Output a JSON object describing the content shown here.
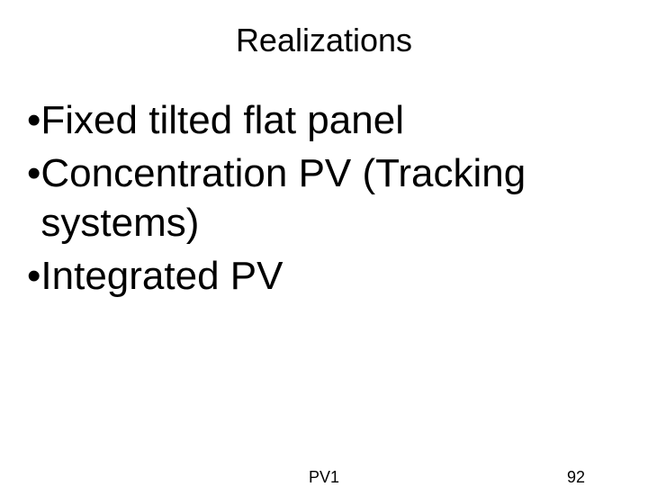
{
  "slide": {
    "title": "Realizations",
    "bullets": [
      {
        "text": "Fixed tilted flat panel"
      },
      {
        "text": "Concentration PV (Tracking systems)"
      },
      {
        "text": "Integrated PV"
      }
    ],
    "footer": {
      "center": "PV1",
      "page_number": "92"
    },
    "style": {
      "background_color": "#ffffff",
      "text_color": "#000000",
      "title_fontsize": 36,
      "body_fontsize": 44,
      "footer_fontsize": 18,
      "font_family": "Arial"
    }
  }
}
